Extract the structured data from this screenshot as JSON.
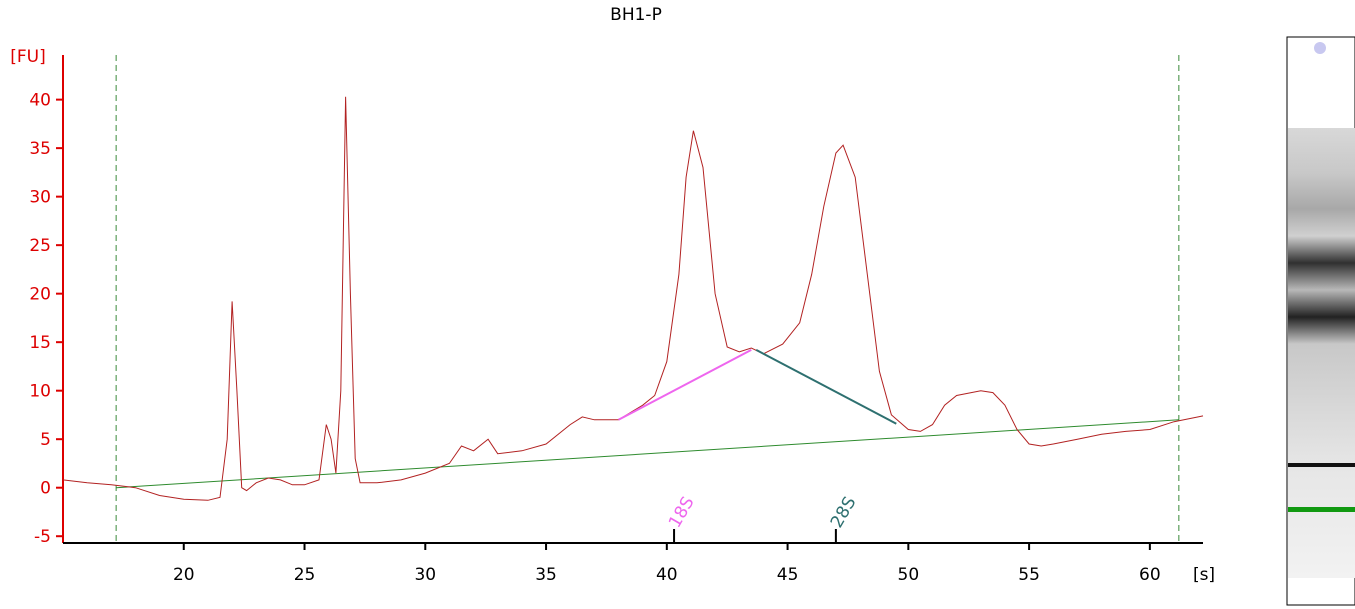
{
  "chart_data": {
    "type": "line",
    "title": "BH1-P",
    "y_label": "[FU]",
    "x_label": "[s]",
    "color": "#b22222",
    "x": [
      15,
      16,
      17,
      18,
      19,
      20,
      21,
      21.5,
      21.8,
      22.0,
      22.2,
      22.4,
      22.6,
      23,
      23.5,
      24,
      24.5,
      25,
      25.6,
      25.9,
      26.1,
      26.3,
      26.5,
      26.7,
      26.9,
      27.1,
      27.3,
      28,
      29,
      30,
      31,
      31.5,
      32,
      32.6,
      33,
      34,
      35,
      36,
      36.5,
      37,
      38,
      39,
      39.5,
      40,
      40.5,
      40.8,
      41.1,
      41.5,
      42,
      42.5,
      43,
      43.5,
      44,
      44.8,
      45.5,
      46,
      46.5,
      47,
      47.3,
      47.8,
      48.3,
      48.8,
      49.3,
      50,
      50.5,
      51,
      51.5,
      52,
      53,
      53.5,
      54,
      54.5,
      55,
      55.5,
      56,
      57,
      58,
      59,
      60,
      61,
      62,
      62.2
    ],
    "values": [
      0.8,
      0.5,
      0.3,
      0,
      -0.8,
      -1.2,
      -1.3,
      -1.0,
      5,
      19.2,
      10,
      0,
      -0.3,
      0.5,
      1.0,
      0.8,
      0.3,
      0.3,
      0.8,
      6.5,
      5,
      1.5,
      10,
      40.3,
      20,
      3,
      0.5,
      0.5,
      0.8,
      1.5,
      2.5,
      4.3,
      3.8,
      5.0,
      3.5,
      3.8,
      4.5,
      6.5,
      7.3,
      7.0,
      7.0,
      8.5,
      9.5,
      13,
      22,
      32,
      36.8,
      33,
      20,
      14.5,
      14,
      14.4,
      13.8,
      14.8,
      17,
      22,
      29,
      34.5,
      35.3,
      32,
      22,
      12,
      7.5,
      6,
      5.8,
      6.5,
      8.5,
      9.5,
      10,
      9.8,
      8.5,
      6,
      4.5,
      4.3,
      4.5,
      5.0,
      5.5,
      5.8,
      6.0,
      6.8,
      7.3,
      7.4
    ],
    "baseline": {
      "color": "#2e8b2e",
      "x": [
        17.2,
        61.2
      ],
      "values": [
        0,
        7.0
      ]
    },
    "region_markers": {
      "color": "#3a8a3a",
      "x": [
        17.2,
        61.2
      ]
    },
    "peaks": [
      {
        "label": "18S",
        "color": "#ee66ee",
        "x": 40.3,
        "fit_x": [
          38,
          43.5
        ],
        "fit_values": [
          7.0,
          14.2
        ]
      },
      {
        "label": "28S",
        "color": "#2e7070",
        "x": 47.0,
        "fit_x": [
          43.7,
          49.5
        ],
        "fit_values": [
          14.2,
          6.6
        ]
      }
    ],
    "xlim": [
      15,
      62.2
    ],
    "ylim": [
      -5.7,
      44.6
    ],
    "xticks": [
      20,
      25,
      30,
      35,
      40,
      45,
      50,
      55,
      60
    ],
    "yticks": [
      -5,
      0,
      5,
      10,
      15,
      20,
      25,
      30,
      35,
      40
    ],
    "y_axis_color": "#dd0000"
  }
}
